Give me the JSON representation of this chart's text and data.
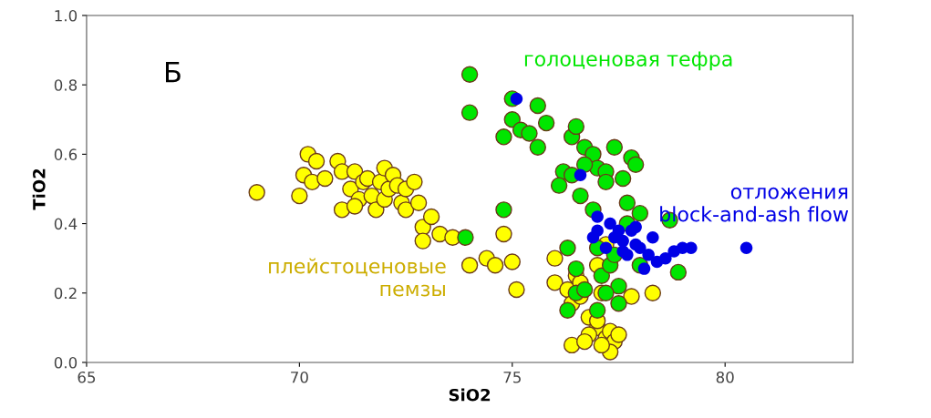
{
  "chart_data": {
    "type": "scatter",
    "xlabel": "SiO2",
    "ylabel": "TiO2",
    "annotations": [
      "Б"
    ],
    "xlim": [
      65,
      83
    ],
    "xticks": [
      65,
      70,
      75,
      80
    ],
    "ylim": [
      0,
      1
    ],
    "yticks": [
      {
        "value": 0,
        "label": "0.0"
      },
      {
        "value": 0.2,
        "label": "0.2"
      },
      {
        "value": 0.4,
        "label": "0.4"
      },
      {
        "value": 0.6,
        "label": "0.6"
      },
      {
        "value": 0.8,
        "label": "0.8"
      },
      {
        "value": 1,
        "label": "1.0"
      }
    ],
    "grid": false,
    "legend": false,
    "marker": "circle",
    "series": [
      {
        "name": "плейстоценовые\nпемзы",
        "color": "#ffff00",
        "x": [
          69.0,
          70.0,
          70.2,
          70.1,
          70.4,
          70.3,
          70.6,
          70.9,
          71.0,
          71.0,
          71.2,
          71.3,
          71.4,
          71.3,
          71.5,
          71.6,
          71.7,
          71.8,
          71.9,
          72.0,
          72.0,
          72.1,
          72.2,
          72.3,
          72.4,
          72.5,
          72.7,
          72.5,
          72.8,
          72.9,
          73.1,
          72.9,
          73.3,
          73.6,
          74.0,
          74.4,
          74.6,
          74.8,
          75.0,
          75.1,
          76.0,
          76.0,
          76.3,
          76.5,
          76.6,
          76.4,
          76.6,
          76.8,
          77.0,
          77.0,
          77.2,
          77.3,
          77.4,
          77.3,
          76.8,
          76.4,
          76.7,
          77.1,
          77.5,
          77.8,
          78.3,
          77.1,
          77.0,
          77.2
        ],
        "values": [
          0.49,
          0.48,
          0.6,
          0.54,
          0.58,
          0.52,
          0.53,
          0.58,
          0.55,
          0.44,
          0.5,
          0.55,
          0.47,
          0.45,
          0.52,
          0.53,
          0.48,
          0.44,
          0.52,
          0.56,
          0.47,
          0.5,
          0.54,
          0.51,
          0.46,
          0.5,
          0.52,
          0.44,
          0.46,
          0.39,
          0.42,
          0.35,
          0.37,
          0.36,
          0.28,
          0.3,
          0.28,
          0.37,
          0.29,
          0.21,
          0.3,
          0.23,
          0.21,
          0.25,
          0.23,
          0.17,
          0.19,
          0.13,
          0.1,
          0.12,
          0.07,
          0.09,
          0.06,
          0.03,
          0.08,
          0.05,
          0.06,
          0.05,
          0.08,
          0.19,
          0.2,
          0.2,
          0.28,
          0.34
        ]
      },
      {
        "name": "голоценовая тефра",
        "color": "#00e600",
        "x": [
          74.0,
          74.0,
          73.9,
          74.8,
          74.8,
          75.0,
          75.0,
          75.2,
          75.4,
          75.6,
          75.6,
          75.8,
          76.4,
          76.5,
          76.2,
          76.1,
          76.4,
          76.7,
          76.9,
          77.0,
          76.6,
          76.7,
          77.2,
          77.2,
          77.4,
          77.6,
          77.8,
          77.9,
          77.7,
          76.9,
          78.0,
          78.7,
          77.0,
          76.3,
          76.5,
          76.3,
          76.5,
          77.1,
          77.3,
          77.5,
          77.2,
          77.0,
          77.5,
          78.9,
          78.0,
          77.7,
          77.4,
          76.7
        ],
        "values": [
          0.83,
          0.72,
          0.36,
          0.44,
          0.65,
          0.76,
          0.7,
          0.67,
          0.66,
          0.74,
          0.62,
          0.69,
          0.65,
          0.68,
          0.55,
          0.51,
          0.54,
          0.62,
          0.6,
          0.56,
          0.48,
          0.57,
          0.55,
          0.52,
          0.62,
          0.53,
          0.59,
          0.57,
          0.46,
          0.44,
          0.43,
          0.41,
          0.33,
          0.33,
          0.27,
          0.15,
          0.2,
          0.25,
          0.28,
          0.22,
          0.2,
          0.15,
          0.17,
          0.26,
          0.28,
          0.4,
          0.31,
          0.21
        ]
      },
      {
        "name": "отложения\nblock-and-ash flow",
        "color": "#0000e6",
        "x": [
          75.1,
          76.6,
          77.0,
          77.0,
          77.3,
          77.5,
          77.2,
          77.6,
          77.8,
          77.9,
          77.4,
          77.7,
          78.0,
          78.2,
          78.1,
          78.4,
          78.6,
          78.8,
          79.0,
          79.2,
          78.3,
          77.6,
          76.9,
          77.9,
          80.5
        ],
        "values": [
          0.76,
          0.54,
          0.42,
          0.38,
          0.4,
          0.38,
          0.33,
          0.35,
          0.38,
          0.34,
          0.36,
          0.31,
          0.33,
          0.31,
          0.27,
          0.29,
          0.3,
          0.32,
          0.33,
          0.33,
          0.36,
          0.32,
          0.36,
          0.39,
          0.33
        ]
      }
    ]
  }
}
